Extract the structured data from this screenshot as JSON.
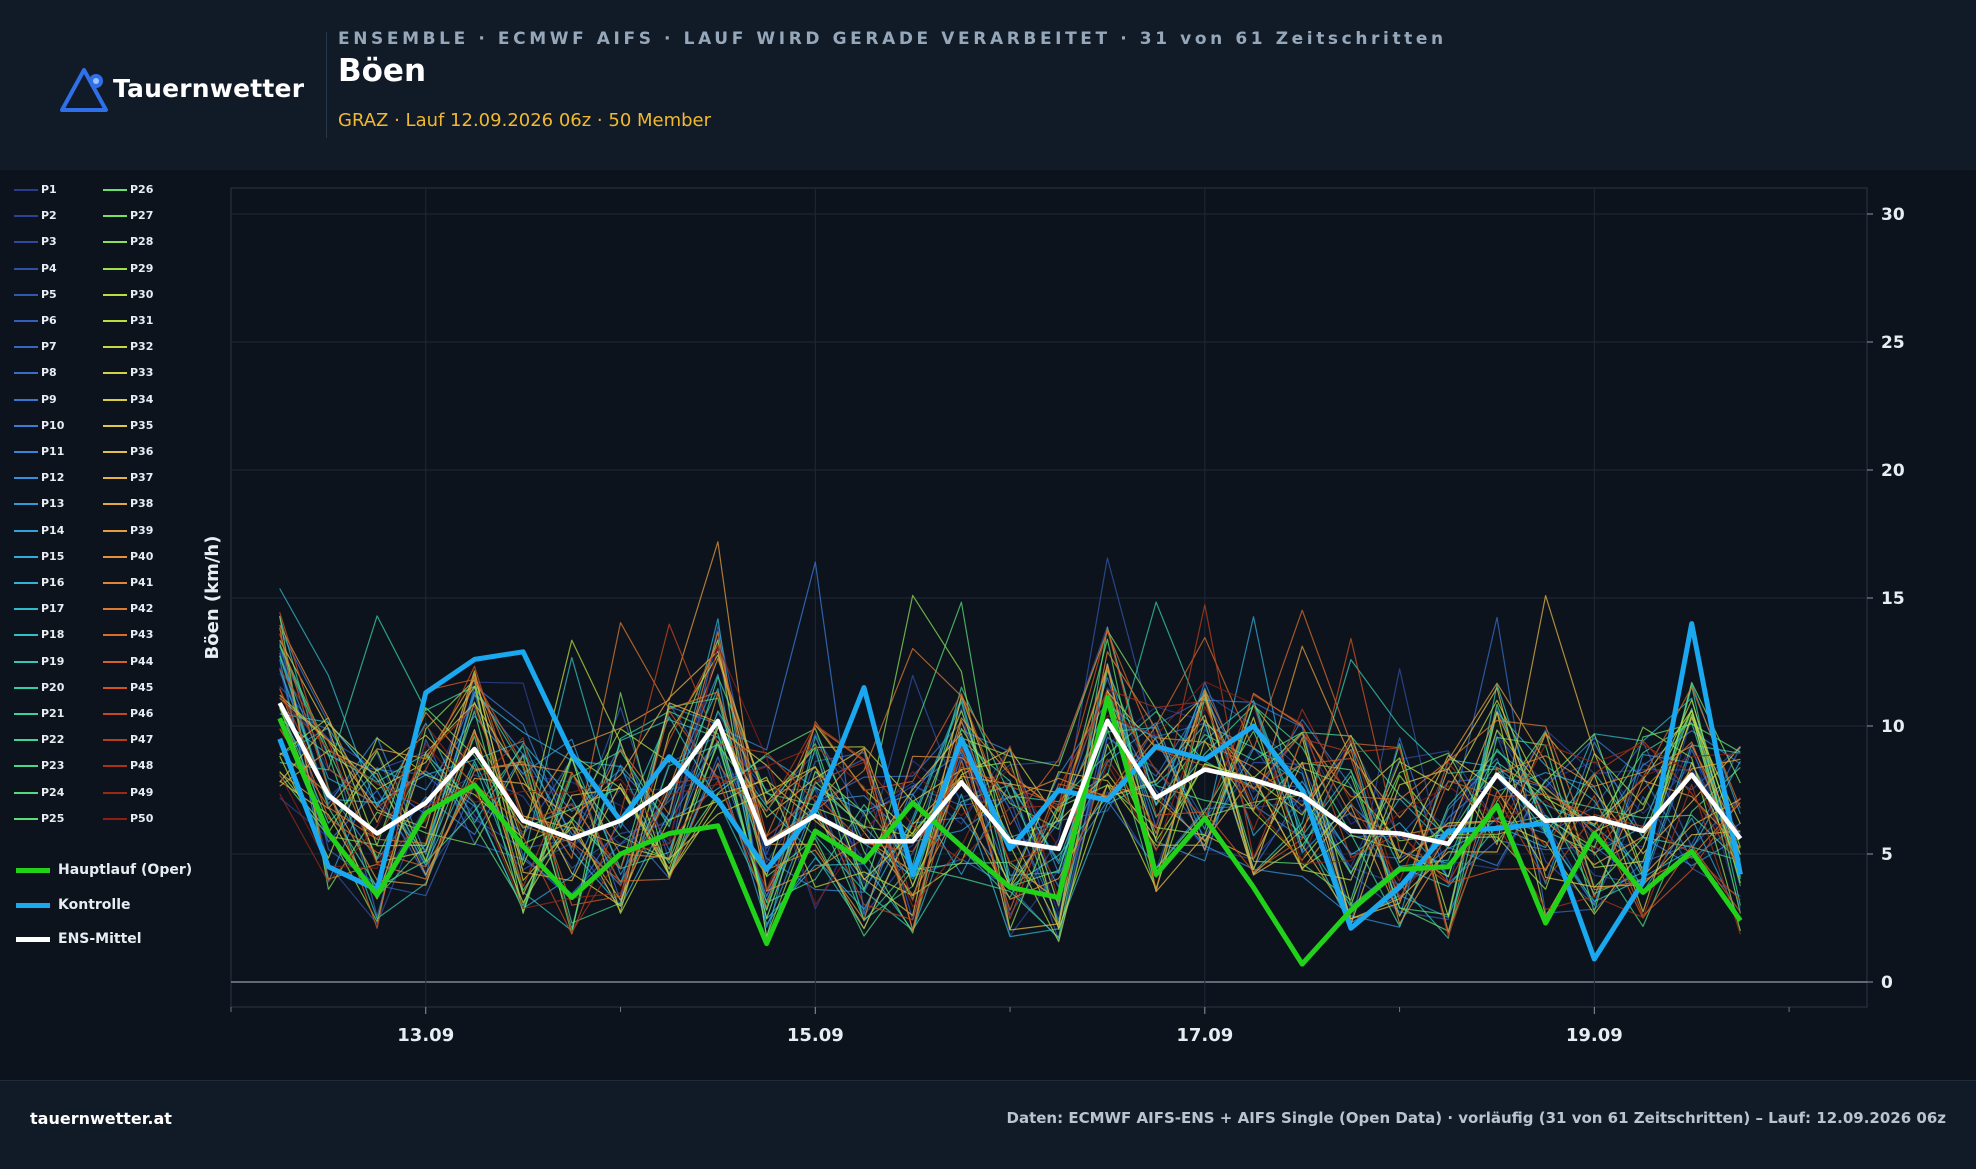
{
  "header": {
    "brand": "Tauernwetter",
    "supertitle": "ENSEMBLE · ECMWF AIFS · LAUF WIRD GERADE VERARBEITET · 31 von 61 Zeitschritten",
    "title": "Böen",
    "subtitle": "GRAZ · Lauf 12.09.2026 06z · 50 Member"
  },
  "footer": {
    "site": "tauernwetter.at",
    "source": "Daten: ECMWF AIFS-ENS + AIFS Single (Open Data) · vorläufig (31 von 61 Zeitschritten) – Lauf: 12.09.2026 06z"
  },
  "colors": {
    "background": "#0d131c",
    "header_background": "#111b27",
    "oper": "#22d21a",
    "control": "#1aa9f0",
    "mean": "#ffffff",
    "subtitle": "#f2b830"
  },
  "chart_data": {
    "type": "line",
    "ylabel": "Böen (km/h)",
    "ylim": [
      0,
      30
    ],
    "yticks": [
      0,
      5,
      10,
      15,
      20,
      25,
      30
    ],
    "xticks": [
      {
        "x": 1,
        "label": "13.09"
      },
      {
        "x": 3,
        "label": "15.09"
      },
      {
        "x": 5,
        "label": "17.09"
      },
      {
        "x": 7,
        "label": "19.09"
      }
    ],
    "x": [
      0.25,
      0.5,
      0.75,
      1.0,
      1.25,
      1.5,
      1.75,
      2.0,
      2.25,
      2.5,
      2.75,
      3.0,
      3.25,
      3.5,
      3.75,
      4.0,
      4.25,
      4.5,
      4.75,
      5.0,
      5.25,
      5.5,
      5.75,
      6.0,
      6.25,
      6.5,
      6.75,
      7.0,
      7.25,
      7.5,
      7.75
    ],
    "members_prefix": "P",
    "member_count": 50,
    "main_series": [
      {
        "name": "Hauptlauf (Oper)",
        "color": "#22d21a",
        "values": [
          10.3,
          5.8,
          3.4,
          6.6,
          7.7,
          5.3,
          3.3,
          5.0,
          5.8,
          6.1,
          1.5,
          5.9,
          4.7,
          7.0,
          5.3,
          3.7,
          3.3,
          11.1,
          4.2,
          6.4,
          3.7,
          0.7,
          2.8,
          4.4,
          4.5,
          6.9,
          2.3,
          5.8,
          3.5,
          5.1,
          2.4
        ]
      },
      {
        "name": "Kontrolle",
        "color": "#1aa9f0",
        "values": [
          9.5,
          4.5,
          3.6,
          11.3,
          12.6,
          12.9,
          8.9,
          6.3,
          8.8,
          7.1,
          4.4,
          6.7,
          11.5,
          4.2,
          9.5,
          5.2,
          7.5,
          7.1,
          9.2,
          8.7,
          10.0,
          7.5,
          2.1,
          3.7,
          5.9,
          6.0,
          6.2,
          0.9,
          3.9,
          14.0,
          4.2
        ]
      },
      {
        "name": "ENS-Mittel",
        "color": "#ffffff",
        "values": [
          10.9,
          7.3,
          5.8,
          7.0,
          9.1,
          6.3,
          5.6,
          6.3,
          7.6,
          10.2,
          5.4,
          6.5,
          5.5,
          5.5,
          7.8,
          5.5,
          5.2,
          10.2,
          7.2,
          8.3,
          7.9,
          7.3,
          5.9,
          5.8,
          5.4,
          8.1,
          6.3,
          6.4,
          5.9,
          8.1,
          5.6
        ]
      }
    ]
  }
}
